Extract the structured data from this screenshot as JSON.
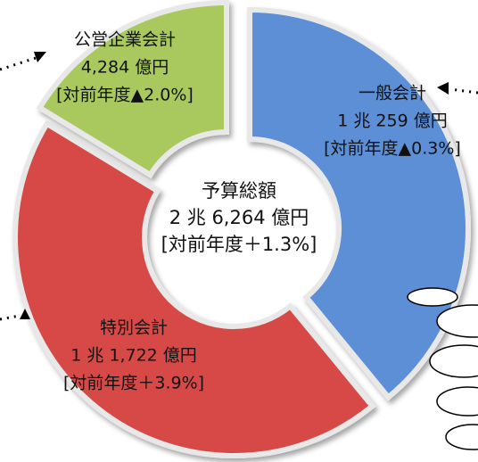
{
  "chart_data": {
    "type": "donut",
    "categories": [
      "一般会計",
      "特別会計",
      "公営企業会計"
    ],
    "values": [
      10259,
      11722,
      4284
    ],
    "value_labels": [
      "1 兆 259 億円",
      "1 兆 1,722 億円",
      "4,284 億円"
    ],
    "changes": [
      "[対前年度▲0.3%]",
      "[対前年度＋3.9%]",
      "[対前年度▲2.0%]"
    ],
    "colors": [
      "#5b8fd6",
      "#d64a46",
      "#a9c95e"
    ],
    "center_label": [
      "予算総額",
      "2 兆 6,264 億円",
      "[対前年度＋1.3%]"
    ]
  }
}
